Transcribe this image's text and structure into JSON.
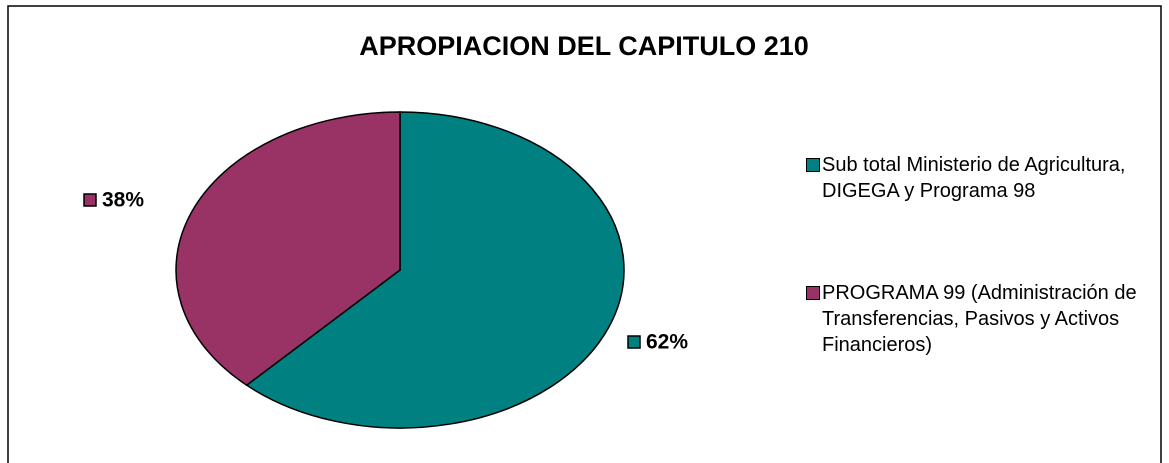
{
  "chart_data": {
    "type": "pie",
    "title": "APROPIACION DEL CAPITULO 210",
    "categories": [
      "Sub total Ministerio de Agricultura, DIGEGA y Programa 98",
      "PROGRAMA 99 (Administración de Transferencias, Pasivos y Activos Financieros)"
    ],
    "values": [
      62,
      38
    ],
    "value_labels": [
      "62%",
      "38%"
    ],
    "colors": [
      "#008080",
      "#993366"
    ],
    "legend": "right"
  }
}
